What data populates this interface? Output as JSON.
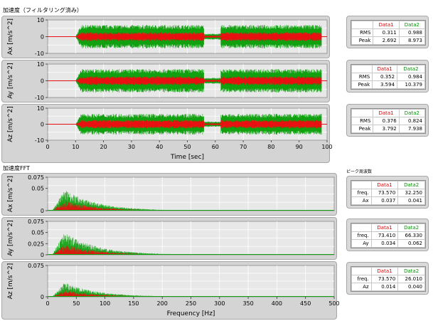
{
  "time_section": {
    "title": "加速度（フィルタリング済み）",
    "xlabel": "Time [sec]"
  },
  "fft_section": {
    "title": "加速度FFT",
    "xlabel": "Frequency [Hz]",
    "peak_title": "ピーク周波数"
  },
  "colors": {
    "data1": "#e81010",
    "data2": "#10a010",
    "bg": "#e8e8e8",
    "grid": "#ffffff"
  },
  "chart_data": [
    {
      "type": "area",
      "name": "ax-time",
      "ylabel": "Ax [m/s^2]",
      "xlim": [
        0,
        100
      ],
      "ylim": [
        -10,
        10
      ],
      "yticks": [
        "10",
        "0",
        "-10"
      ],
      "xticks": [],
      "series": [
        {
          "name": "Data1"
        },
        {
          "name": "Data2"
        }
      ]
    },
    {
      "type": "area",
      "name": "ay-time",
      "ylabel": "Ay [m/s^2]",
      "xlim": [
        0,
        100
      ],
      "ylim": [
        -10,
        10
      ],
      "yticks": [
        "10",
        "0",
        "-10"
      ],
      "xticks": [],
      "series": [
        {
          "name": "Data1"
        },
        {
          "name": "Data2"
        }
      ]
    },
    {
      "type": "area",
      "name": "az-time",
      "ylabel": "Az [m/s^2]",
      "xlim": [
        0,
        100
      ],
      "ylim": [
        -10,
        10
      ],
      "yticks": [
        "10",
        "0",
        "-10"
      ],
      "xticks": [
        "0",
        "10",
        "20",
        "30",
        "40",
        "50",
        "60",
        "70",
        "80",
        "90",
        "100"
      ],
      "series": [
        {
          "name": "Data1"
        },
        {
          "name": "Data2"
        }
      ]
    },
    {
      "type": "area",
      "name": "ax-fft",
      "ylabel": "Ax [m/s^2]",
      "xlim": [
        0,
        500
      ],
      "ylim": [
        0,
        0.075
      ],
      "yticks": [
        "0.075",
        "0.05",
        "0"
      ],
      "xticks": [],
      "series": [
        {
          "name": "Data1"
        },
        {
          "name": "Data2"
        }
      ]
    },
    {
      "type": "area",
      "name": "ay-fft",
      "ylabel": "Ay [m/s^2]",
      "xlim": [
        0,
        500
      ],
      "ylim": [
        0,
        0.075
      ],
      "yticks": [
        "0.075",
        "0.05",
        "0.025",
        "0"
      ],
      "xticks": [],
      "series": [
        {
          "name": "Data1"
        },
        {
          "name": "Data2"
        }
      ]
    },
    {
      "type": "area",
      "name": "az-fft",
      "ylabel": "Az [m/s^2]",
      "xlim": [
        0,
        500
      ],
      "ylim": [
        0,
        0.075
      ],
      "yticks": [
        "0.075",
        "0"
      ],
      "xticks": [
        "0",
        "50",
        "100",
        "150",
        "200",
        "250",
        "300",
        "350",
        "400",
        "450",
        "500"
      ],
      "series": [
        {
          "name": "Data1"
        },
        {
          "name": "Data2"
        }
      ]
    }
  ],
  "tables": [
    {
      "header": [
        "",
        "Data1",
        "Data2"
      ],
      "rows": [
        [
          "RMS",
          "0.311",
          "0.988"
        ],
        [
          "Peak",
          "2.692",
          "8.973"
        ]
      ]
    },
    {
      "header": [
        "",
        "Data1",
        "Data2"
      ],
      "rows": [
        [
          "RMS",
          "0.352",
          "0.984"
        ],
        [
          "Peak",
          "3.594",
          "10.379"
        ]
      ]
    },
    {
      "header": [
        "",
        "Data1",
        "Data2"
      ],
      "rows": [
        [
          "RMS",
          "0.376",
          "0.824"
        ],
        [
          "Peak",
          "3.792",
          "7.938"
        ]
      ]
    },
    {
      "header": [
        "",
        "Data1",
        "Data2"
      ],
      "rows": [
        [
          "freq.",
          "73.570",
          "32.250"
        ],
        [
          "Ax",
          "0.037",
          "0.041"
        ]
      ]
    },
    {
      "header": [
        "",
        "Data1",
        "Data2"
      ],
      "rows": [
        [
          "freq.",
          "73.410",
          "66.330"
        ],
        [
          "Ay",
          "0.034",
          "0.062"
        ]
      ]
    },
    {
      "header": [
        "",
        "Data1",
        "Data2"
      ],
      "rows": [
        [
          "freq.",
          "73.570",
          "26.010"
        ],
        [
          "Az",
          "0.014",
          "0.040"
        ]
      ]
    }
  ]
}
